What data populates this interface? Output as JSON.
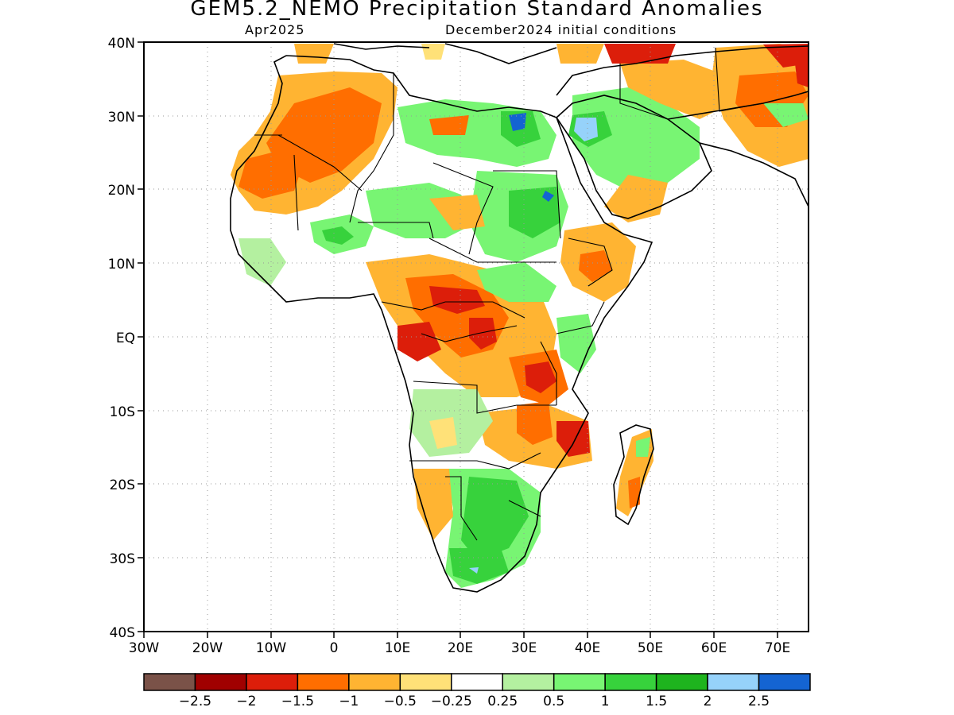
{
  "title": "GEM5.2_NEMO Precipitation Standard Anomalies",
  "subtitle_left": "Apr2025",
  "subtitle_right": "December2024 initial conditions",
  "map": {
    "lon_range": [
      -30,
      75
    ],
    "lat_range": [
      -40,
      40
    ],
    "lat_tick_labels": [
      "40N",
      "30N",
      "20N",
      "10N",
      "EQ",
      "10S",
      "20S",
      "30S",
      "40S"
    ],
    "lon_tick_labels": [
      "30W",
      "20W",
      "10W",
      "0",
      "10E",
      "20E",
      "30E",
      "40E",
      "50E",
      "60E",
      "70E"
    ],
    "gridlines": "dotted"
  },
  "colorbar": {
    "colors": [
      "#7a5248",
      "#a00000",
      "#dc1e0a",
      "#ff6e00",
      "#ffb432",
      "#ffe178",
      "#ffffff",
      "#b4f0a0",
      "#78f573",
      "#37d23c",
      "#1eb41e",
      "#96d2fa",
      "#1464d2"
    ],
    "labels": [
      "−2.5",
      "−2",
      "−1.5",
      "−1",
      "−0.5",
      "−0.25",
      "0.25",
      "0.5",
      "1",
      "1.5",
      "2",
      "2.5"
    ]
  }
}
